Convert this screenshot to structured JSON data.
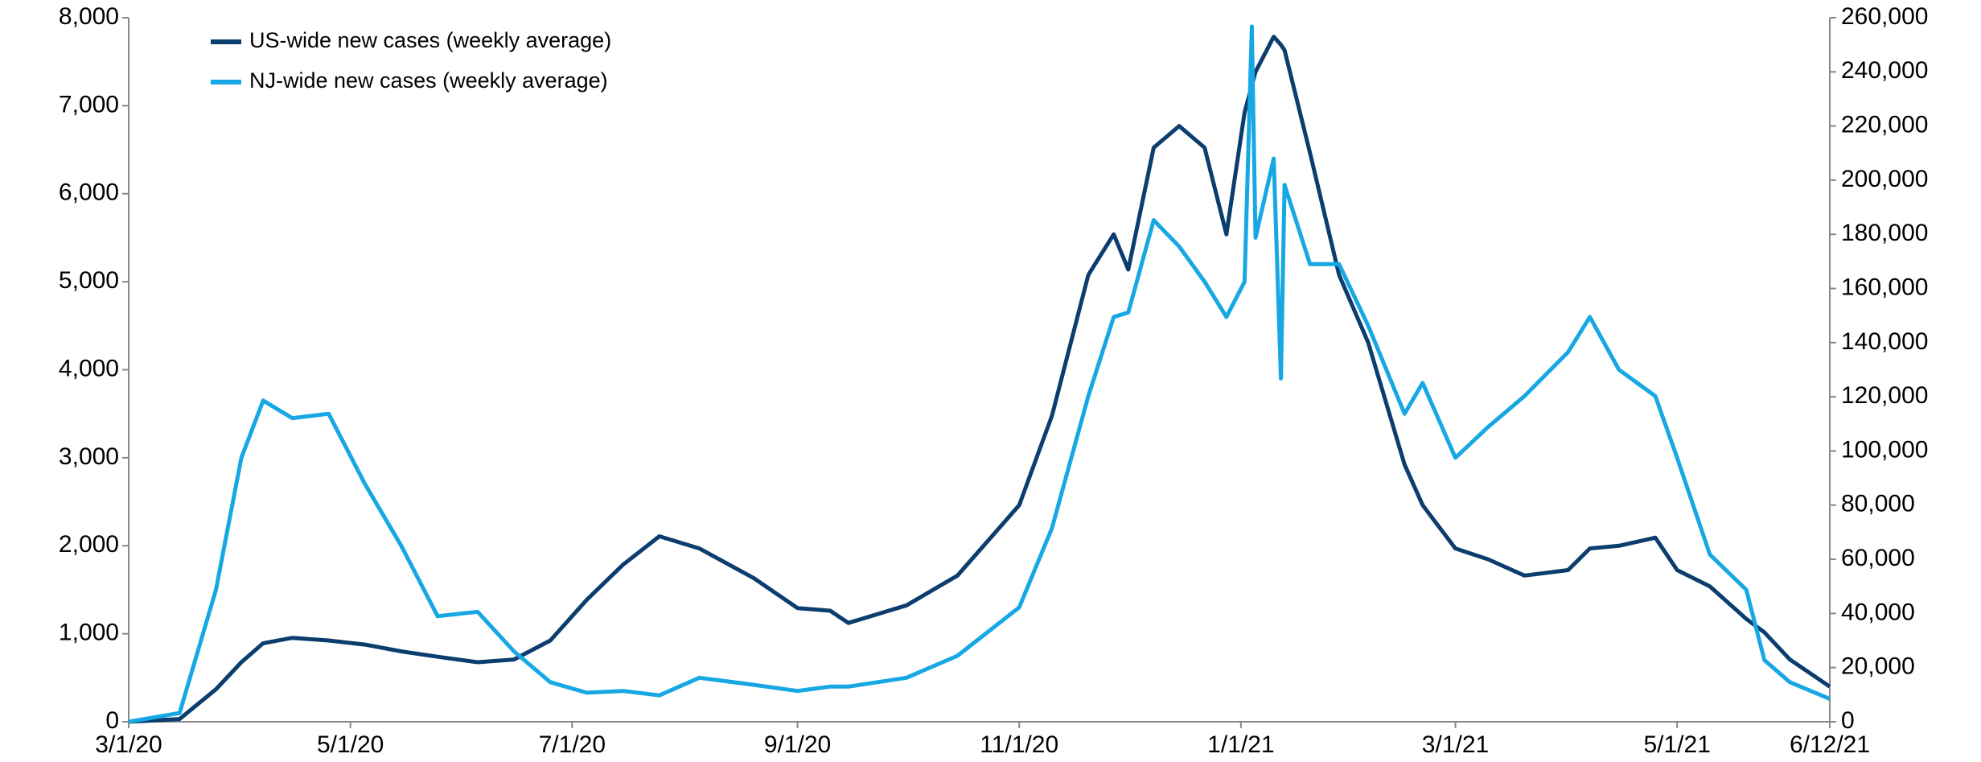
{
  "chart_data": {
    "type": "line",
    "x": [
      "2020-03-01",
      "2020-03-15",
      "2020-03-25",
      "2020-04-01",
      "2020-04-07",
      "2020-04-15",
      "2020-04-25",
      "2020-05-05",
      "2020-05-15",
      "2020-05-25",
      "2020-06-05",
      "2020-06-15",
      "2020-06-25",
      "2020-07-05",
      "2020-07-15",
      "2020-07-25",
      "2020-08-05",
      "2020-08-20",
      "2020-09-01",
      "2020-09-10",
      "2020-09-15",
      "2020-10-01",
      "2020-10-15",
      "2020-11-01",
      "2020-11-10",
      "2020-11-20",
      "2020-11-27",
      "2020-12-01",
      "2020-12-08",
      "2020-12-15",
      "2020-12-22",
      "2020-12-28",
      "2021-01-02",
      "2021-01-04",
      "2021-01-05",
      "2021-01-10",
      "2021-01-12",
      "2021-01-13",
      "2021-01-20",
      "2021-01-28",
      "2021-02-05",
      "2021-02-15",
      "2021-02-20",
      "2021-03-01",
      "2021-03-10",
      "2021-03-20",
      "2021-04-01",
      "2021-04-07",
      "2021-04-15",
      "2021-04-25",
      "2021-05-01",
      "2021-05-10",
      "2021-05-20",
      "2021-05-25",
      "2021-06-01",
      "2021-06-12"
    ],
    "series": [
      {
        "name": "US-wide new cases (weekly average)",
        "color": "#0b3d6e",
        "axis": "y2",
        "values": [
          0,
          1000,
          12000,
          22000,
          29000,
          31000,
          30000,
          28500,
          26000,
          24000,
          22000,
          23000,
          30000,
          45000,
          58000,
          68500,
          64000,
          53000,
          42000,
          41000,
          36500,
          43000,
          54000,
          80000,
          113000,
          165000,
          180000,
          167000,
          212000,
          220000,
          212000,
          180000,
          225000,
          235000,
          240000,
          253000,
          250000,
          248000,
          210000,
          165000,
          140000,
          95000,
          80000,
          64000,
          60000,
          54000,
          56000,
          64000,
          65000,
          68000,
          56000,
          50000,
          38000,
          33000,
          23000,
          13000
        ]
      },
      {
        "name": "NJ-wide new cases (weekly average)",
        "color": "#17a8e3",
        "values": [
          0,
          100,
          1500,
          3000,
          3650,
          3450,
          3500,
          2700,
          2000,
          1200,
          1250,
          800,
          450,
          330,
          350,
          300,
          500,
          420,
          350,
          400,
          400,
          500,
          750,
          1300,
          2200,
          3700,
          4600,
          4650,
          5700,
          5400,
          5000,
          4600,
          5000,
          7900,
          5500,
          6400,
          3900,
          6100,
          5200,
          5200,
          4500,
          3500,
          3850,
          3000,
          3350,
          3700,
          4200,
          4600,
          4000,
          3700,
          3000,
          1900,
          1500,
          700,
          450,
          260
        ]
      }
    ],
    "xlim": [
      "2020-03-01",
      "2021-06-12"
    ],
    "xticks": [
      {
        "value": "2020-03-01",
        "label": "3/1/20"
      },
      {
        "value": "2020-05-01",
        "label": "5/1/20"
      },
      {
        "value": "2020-07-01",
        "label": "7/1/20"
      },
      {
        "value": "2020-09-01",
        "label": "9/1/20"
      },
      {
        "value": "2020-11-01",
        "label": "11/1/20"
      },
      {
        "value": "2021-01-01",
        "label": "1/1/21"
      },
      {
        "value": "2021-03-01",
        "label": "3/1/21"
      },
      {
        "value": "2021-05-01",
        "label": "5/1/21"
      },
      {
        "value": "2021-06-12",
        "label": "6/12/21"
      }
    ],
    "ylim": [
      0,
      8000
    ],
    "yticks": [
      0,
      {
        "value": 1000,
        "label": "1,000"
      },
      {
        "value": 2000,
        "label": "2,000"
      },
      {
        "value": 3000,
        "label": "3,000"
      },
      {
        "value": 4000,
        "label": "4,000"
      },
      {
        "value": 5000,
        "label": "5,000"
      },
      {
        "value": 6000,
        "label": "6,000"
      },
      {
        "value": 7000,
        "label": "7,000"
      },
      {
        "value": 8000,
        "label": "8,000"
      }
    ],
    "y2lim": [
      0,
      260000
    ],
    "y2ticks": [
      0,
      {
        "value": 20000,
        "label": "20,000"
      },
      {
        "value": 40000,
        "label": "40,000"
      },
      {
        "value": 60000,
        "label": "60,000"
      },
      {
        "value": 80000,
        "label": "80,000"
      },
      {
        "value": 100000,
        "label": "100,000"
      },
      {
        "value": 120000,
        "label": "120,000"
      },
      {
        "value": 140000,
        "label": "140,000"
      },
      {
        "value": 160000,
        "label": "160,000"
      },
      {
        "value": 180000,
        "label": "180,000"
      },
      {
        "value": 200000,
        "label": "200,000"
      },
      {
        "value": 220000,
        "label": "220,000"
      },
      {
        "value": 240000,
        "label": "240,000"
      },
      {
        "value": 260000,
        "label": "260,000"
      }
    ],
    "grid": false
  }
}
